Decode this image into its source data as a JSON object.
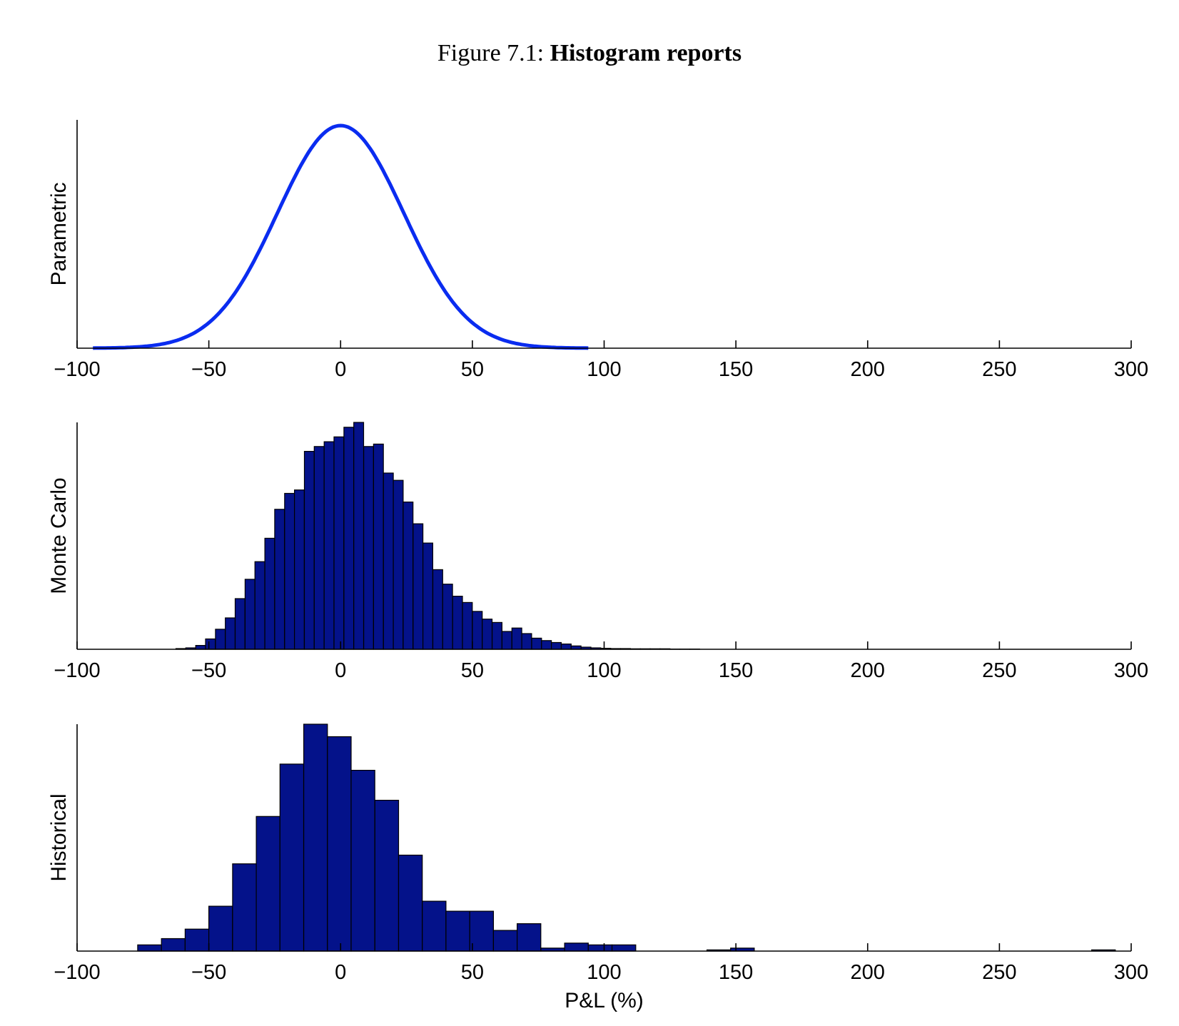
{
  "caption": {
    "prefix": "Figure 7.1:",
    "title": "Histogram reports"
  },
  "colors": {
    "curve": "#0a2cf0",
    "bar_fill": "#04128a",
    "bar_edge": "#000000",
    "axis": "#000000"
  },
  "chart_data": [
    {
      "type": "line",
      "ylabel": "Parametric",
      "xlabel": "",
      "xlim": [
        -100,
        300
      ],
      "xticks": [
        -100,
        -50,
        0,
        50,
        100,
        150,
        200,
        250,
        300
      ],
      "xtick_labels": [
        "−100",
        "−50",
        "0",
        "50",
        "100",
        "150",
        "200",
        "250",
        "300"
      ],
      "distribution": {
        "mean": 0,
        "std": 24,
        "x_range": [
          -94,
          94
        ]
      },
      "grid": false
    },
    {
      "type": "bar",
      "ylabel": "Monte Carlo",
      "xlabel": "",
      "xlim": [
        -100,
        300
      ],
      "xticks": [
        -100,
        -50,
        0,
        50,
        100,
        150,
        200,
        250,
        300
      ],
      "xtick_labels": [
        "−100",
        "−50",
        "0",
        "50",
        "100",
        "150",
        "200",
        "250",
        "300"
      ],
      "bin_start": -62.5,
      "bin_width": 3.75,
      "counts": [
        0.3,
        0.6,
        1.6,
        4.3,
        8.3,
        13.0,
        21.0,
        29.0,
        36.3,
        46.0,
        58.0,
        64.6,
        66.0,
        82.0,
        84.0,
        86.0,
        88.0,
        92.0,
        94.0,
        84.0,
        85.0,
        73.0,
        70.0,
        61.0,
        52.0,
        44.0,
        33.0,
        27.0,
        22.0,
        19.4,
        15.7,
        12.5,
        11.1,
        7.4,
        8.8,
        6.5,
        4.6,
        3.6,
        2.8,
        2.2,
        1.4,
        0.9,
        0.6,
        0.4,
        0.3,
        0.3,
        0.2,
        0.2,
        0.2,
        0.2,
        0.1,
        0.1,
        0.1
      ],
      "grid": false
    },
    {
      "type": "bar",
      "ylabel": "Historical",
      "xlabel": "P&L (%)",
      "xlim": [
        -100,
        300
      ],
      "xticks": [
        -100,
        -50,
        0,
        50,
        100,
        150,
        200,
        250,
        300
      ],
      "xtick_labels": [
        "−100",
        "−50",
        "0",
        "50",
        "100",
        "150",
        "200",
        "250",
        "300"
      ],
      "bars": [
        {
          "x0": -77,
          "x1": -68,
          "value": 2.5
        },
        {
          "x0": -68,
          "x1": -59,
          "value": 5.0
        },
        {
          "x0": -59,
          "x1": -50,
          "value": 8.8
        },
        {
          "x0": -50,
          "x1": -41,
          "value": 18.0
        },
        {
          "x0": -41,
          "x1": -32,
          "value": 35.0
        },
        {
          "x0": -32,
          "x1": -23,
          "value": 54.0
        },
        {
          "x0": -23,
          "x1": -14,
          "value": 75.0
        },
        {
          "x0": -14,
          "x1": -5,
          "value": 91.0
        },
        {
          "x0": -5,
          "x1": 4,
          "value": 86.0
        },
        {
          "x0": 4,
          "x1": 13,
          "value": 72.5
        },
        {
          "x0": 13,
          "x1": 22,
          "value": 60.5
        },
        {
          "x0": 22,
          "x1": 31,
          "value": 38.5
        },
        {
          "x0": 31,
          "x1": 40,
          "value": 20.0
        },
        {
          "x0": 40,
          "x1": 49,
          "value": 16.0
        },
        {
          "x0": 49,
          "x1": 58,
          "value": 16.0
        },
        {
          "x0": 58,
          "x1": 67,
          "value": 8.3
        },
        {
          "x0": 67,
          "x1": 76,
          "value": 11.0
        },
        {
          "x0": 76,
          "x1": 85,
          "value": 1.2
        },
        {
          "x0": 85,
          "x1": 94,
          "value": 3.2
        },
        {
          "x0": 94,
          "x1": 103,
          "value": 2.5
        },
        {
          "x0": 103,
          "x1": 112,
          "value": 2.5
        },
        {
          "x0": 139,
          "x1": 148,
          "value": 0.5
        },
        {
          "x0": 148,
          "x1": 157,
          "value": 1.2
        },
        {
          "x0": 285,
          "x1": 294,
          "value": 0.5
        }
      ],
      "grid": false
    }
  ]
}
